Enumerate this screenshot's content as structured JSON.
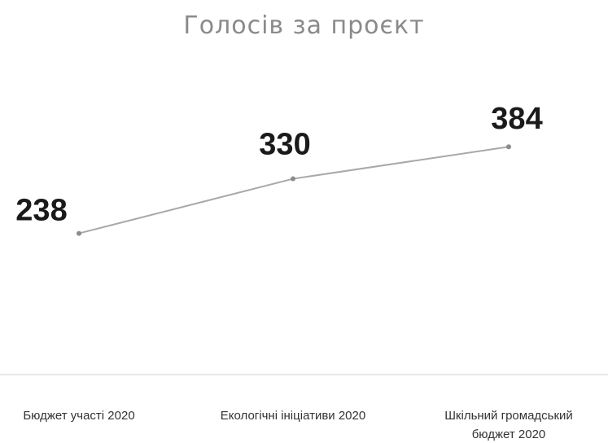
{
  "chart_data": {
    "type": "line",
    "title": "Голосів за проєкт",
    "categories": [
      [
        "Бюджет участі 2020"
      ],
      [
        "Екологічні ініціативи 2020"
      ],
      [
        "Шкільний громадський",
        "бюджет 2020"
      ]
    ],
    "series": [
      {
        "values": [
          238,
          330,
          384
        ]
      }
    ],
    "data_labels": [
      "238",
      "330",
      "384"
    ],
    "ylim": [
      0,
      450
    ],
    "grid": false,
    "legend": "none",
    "line_color": "#a9a9a9",
    "marker_color": "#8c8c8c",
    "axis_color": "#d0d0d0"
  }
}
